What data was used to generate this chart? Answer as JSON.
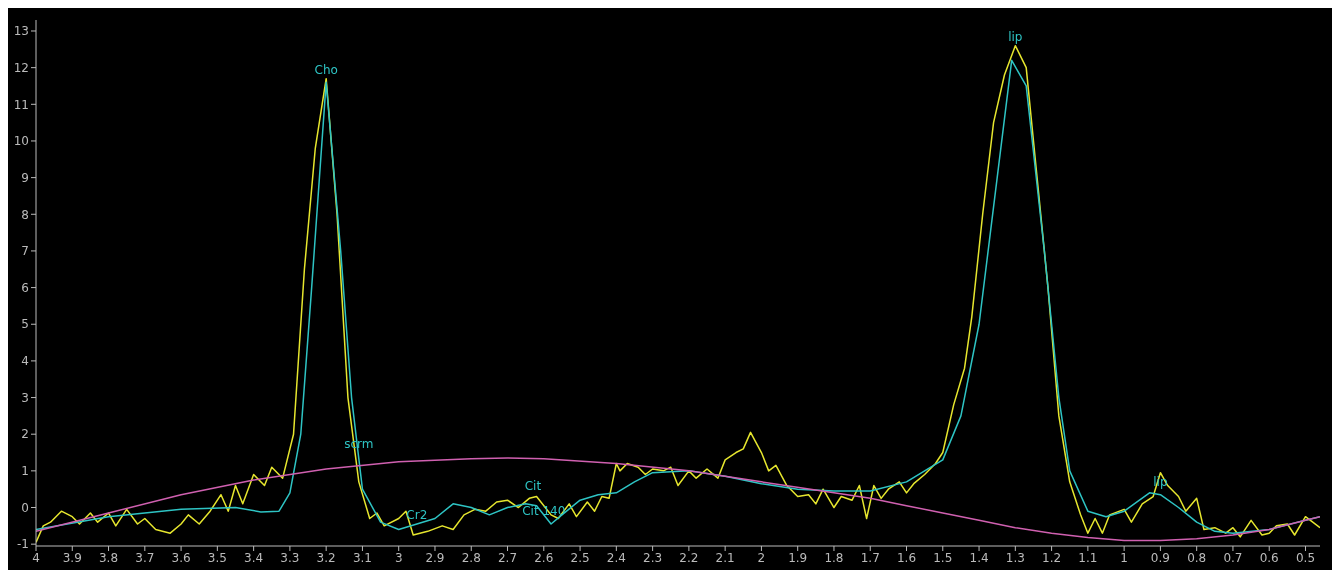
{
  "chart_data": {
    "type": "line",
    "xlim": [
      4,
      0.46
    ],
    "xticks": [
      4,
      3.9,
      3.8,
      3.7,
      3.6,
      3.5,
      3.4,
      3.3,
      3.2,
      3.1,
      3,
      2.9,
      2.8,
      2.7,
      2.6,
      2.5,
      2.4,
      2.3,
      2.2,
      2.1,
      2,
      1.9,
      1.8,
      1.7,
      1.6,
      1.5,
      1.4,
      1.3,
      1.2,
      1.1,
      1,
      0.9,
      0.8,
      0.7,
      0.6,
      0.5
    ],
    "ylim": [
      -1.05,
      13.3
    ],
    "yticks": [
      -1,
      0,
      1,
      2,
      3,
      4,
      5,
      6,
      7,
      8,
      9,
      10,
      11,
      12,
      13
    ],
    "grid": false,
    "legend": false,
    "marker": "none",
    "line_style": "solid",
    "annotations": [
      {
        "text": "Cho",
        "x": 3.2,
        "y": 11.7
      },
      {
        "text": "scrm",
        "x": 3.11,
        "y": 1.5
      },
      {
        "text": "Cr2",
        "x": 2.95,
        "y": -0.45
      },
      {
        "text": "Cit",
        "x": 2.63,
        "y": 0.35
      },
      {
        "text": "Cit 140",
        "x": 2.6,
        "y": -0.35
      },
      {
        "text": "lip",
        "x": 1.3,
        "y": 12.6
      },
      {
        "text": "lip",
        "x": 0.9,
        "y": 0.45
      }
    ],
    "series": [
      {
        "color": "#e6e62e",
        "x": [
          4,
          3.98,
          3.96,
          3.93,
          3.9,
          3.88,
          3.85,
          3.83,
          3.8,
          3.78,
          3.75,
          3.72,
          3.7,
          3.67,
          3.63,
          3.6,
          3.58,
          3.55,
          3.52,
          3.49,
          3.47,
          3.45,
          3.43,
          3.4,
          3.37,
          3.35,
          3.32,
          3.29,
          3.26,
          3.23,
          3.2,
          3.17,
          3.14,
          3.11,
          3.08,
          3.06,
          3.04,
          3,
          2.98,
          2.96,
          2.92,
          2.88,
          2.85,
          2.82,
          2.79,
          2.76,
          2.73,
          2.7,
          2.67,
          2.64,
          2.62,
          2.58,
          2.56,
          2.53,
          2.51,
          2.48,
          2.46,
          2.44,
          2.42,
          2.4,
          2.39,
          2.37,
          2.34,
          2.32,
          2.3,
          2.27,
          2.25,
          2.23,
          2.2,
          2.18,
          2.15,
          2.12,
          2.1,
          2.07,
          2.05,
          2.03,
          2,
          1.98,
          1.96,
          1.93,
          1.9,
          1.87,
          1.85,
          1.83,
          1.8,
          1.78,
          1.75,
          1.73,
          1.71,
          1.69,
          1.67,
          1.65,
          1.62,
          1.6,
          1.58,
          1.55,
          1.52,
          1.5,
          1.47,
          1.44,
          1.42,
          1.39,
          1.36,
          1.33,
          1.3,
          1.27,
          1.24,
          1.21,
          1.18,
          1.15,
          1.12,
          1.1,
          1.08,
          1.06,
          1.04,
          1,
          0.98,
          0.95,
          0.92,
          0.9,
          0.88,
          0.85,
          0.83,
          0.8,
          0.78,
          0.75,
          0.72,
          0.7,
          0.68,
          0.65,
          0.62,
          0.6,
          0.58,
          0.55,
          0.53,
          0.5,
          0.48,
          0.46
        ],
        "values": [
          -0.95,
          -0.5,
          -0.4,
          -0.1,
          -0.25,
          -0.45,
          -0.15,
          -0.4,
          -0.15,
          -0.5,
          -0.05,
          -0.45,
          -0.3,
          -0.6,
          -0.7,
          -0.45,
          -0.2,
          -0.45,
          -0.1,
          0.35,
          -0.1,
          0.6,
          0.1,
          0.9,
          0.6,
          1.1,
          0.8,
          2,
          6.5,
          9.8,
          11.7,
          8,
          3,
          0.7,
          -0.3,
          -0.15,
          -0.5,
          -0.3,
          -0.1,
          -0.75,
          -0.65,
          -0.5,
          -0.6,
          -0.2,
          -0.05,
          -0.1,
          0.15,
          0.2,
          0,
          0.25,
          0.3,
          -0.2,
          -0.3,
          0.1,
          -0.25,
          0.15,
          -0.1,
          0.3,
          0.25,
          1.2,
          1,
          1.2,
          1.1,
          0.9,
          1.05,
          1,
          1.1,
          0.6,
          1,
          0.8,
          1.05,
          0.8,
          1.3,
          1.5,
          1.6,
          2.05,
          1.5,
          1,
          1.15,
          0.6,
          0.3,
          0.35,
          0.1,
          0.5,
          0,
          0.3,
          0.2,
          0.6,
          -0.3,
          0.6,
          0.25,
          0.5,
          0.7,
          0.4,
          0.65,
          0.9,
          1.2,
          1.5,
          2.8,
          3.8,
          5.2,
          8,
          10.5,
          11.8,
          12.6,
          12,
          9,
          6,
          2.5,
          0.7,
          -0.2,
          -0.7,
          -0.3,
          -0.7,
          -0.2,
          -0.05,
          -0.4,
          0.1,
          0.3,
          0.95,
          0.6,
          0.3,
          -0.1,
          0.25,
          -0.6,
          -0.55,
          -0.7,
          -0.55,
          -0.8,
          -0.35,
          -0.75,
          -0.7,
          -0.5,
          -0.45,
          -0.75,
          -0.25,
          -0.4,
          -0.55
        ]
      },
      {
        "color": "#2ec4c4",
        "x": [
          4,
          3.8,
          3.6,
          3.45,
          3.38,
          3.33,
          3.3,
          3.27,
          3.24,
          3.2,
          3.16,
          3.13,
          3.1,
          3.05,
          3,
          2.9,
          2.85,
          2.8,
          2.75,
          2.7,
          2.65,
          2.62,
          2.58,
          2.55,
          2.5,
          2.45,
          2.4,
          2.35,
          2.3,
          2.2,
          2.1,
          2,
          1.9,
          1.8,
          1.7,
          1.6,
          1.5,
          1.45,
          1.4,
          1.35,
          1.31,
          1.27,
          1.22,
          1.18,
          1.15,
          1.1,
          1.05,
          1,
          0.93,
          0.9,
          0.85,
          0.8,
          0.75,
          0.7,
          0.6,
          0.5,
          0.46
        ],
        "values": [
          -0.6,
          -0.25,
          -0.05,
          0,
          -0.12,
          -0.1,
          0.4,
          2,
          6,
          11.6,
          7,
          3,
          0.5,
          -0.4,
          -0.6,
          -0.3,
          0.1,
          0,
          -0.2,
          0,
          0.1,
          0.05,
          -0.45,
          -0.2,
          0.2,
          0.35,
          0.4,
          0.7,
          0.95,
          1,
          0.85,
          0.65,
          0.5,
          0.45,
          0.45,
          0.7,
          1.3,
          2.5,
          5,
          9,
          12.2,
          11.5,
          7,
          3,
          1,
          -0.1,
          -0.25,
          -0.1,
          0.4,
          0.35,
          0,
          -0.4,
          -0.65,
          -0.7,
          -0.6,
          -0.35,
          -0.25
        ]
      },
      {
        "color": "#d060b0",
        "x": [
          4,
          3.8,
          3.6,
          3.4,
          3.2,
          3,
          2.8,
          2.7,
          2.6,
          2.4,
          2.2,
          2,
          1.8,
          1.7,
          1.6,
          1.5,
          1.4,
          1.3,
          1.2,
          1.1,
          1,
          0.9,
          0.8,
          0.7,
          0.6,
          0.5,
          0.46
        ],
        "values": [
          -0.65,
          -0.15,
          0.35,
          0.75,
          1.05,
          1.25,
          1.33,
          1.35,
          1.33,
          1.2,
          1,
          0.7,
          0.4,
          0.25,
          0.05,
          -0.15,
          -0.35,
          -0.55,
          -0.7,
          -0.82,
          -0.9,
          -0.9,
          -0.85,
          -0.75,
          -0.6,
          -0.35,
          -0.25
        ]
      }
    ]
  }
}
